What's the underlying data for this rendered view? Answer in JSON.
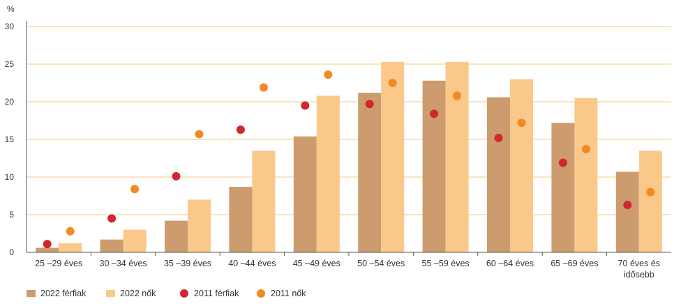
{
  "colors": {
    "men_2022": "#cc9c6e",
    "women_2022": "#fac98a",
    "men_2011": "#d22630",
    "women_2011": "#f08a24",
    "gridline": "#f5c878",
    "axis": "#555555"
  },
  "chart_data": {
    "type": "bar",
    "ylabel": "%",
    "ylim": [
      0,
      30
    ],
    "yticks": [
      0,
      5,
      10,
      15,
      20,
      25,
      30
    ],
    "grid": true,
    "legend_position": "bottom-left",
    "categories": [
      [
        "25 –29 éves"
      ],
      [
        "30 –34 éves"
      ],
      [
        "35 –39 éves"
      ],
      [
        "40 –44 éves"
      ],
      [
        "45 –49 éves"
      ],
      [
        "50 –54 éves"
      ],
      [
        "55 –59 éves"
      ],
      [
        "60 –64 éves"
      ],
      [
        "65 –69 éves"
      ],
      [
        "70 éves és",
        "idősebb"
      ]
    ],
    "series": [
      {
        "name": "2022 férfiak",
        "kind": "bar",
        "color_key": "men_2022",
        "values": [
          0.6,
          1.7,
          4.2,
          8.7,
          15.4,
          21.2,
          22.8,
          20.6,
          17.2,
          10.7
        ]
      },
      {
        "name": "2022 nők",
        "kind": "bar",
        "color_key": "women_2022",
        "values": [
          1.2,
          3.0,
          7.0,
          13.5,
          20.8,
          25.3,
          25.3,
          23.0,
          20.5,
          13.5
        ]
      },
      {
        "name": "2011 férfiak",
        "kind": "dot",
        "color_key": "men_2011",
        "values": [
          1.1,
          4.5,
          10.1,
          16.3,
          19.5,
          19.7,
          18.4,
          15.2,
          11.9,
          6.3
        ]
      },
      {
        "name": "2011 nők",
        "kind": "dot",
        "color_key": "women_2011",
        "values": [
          2.8,
          8.4,
          15.7,
          21.9,
          23.6,
          22.5,
          20.8,
          17.2,
          13.7,
          8.0
        ]
      }
    ]
  }
}
